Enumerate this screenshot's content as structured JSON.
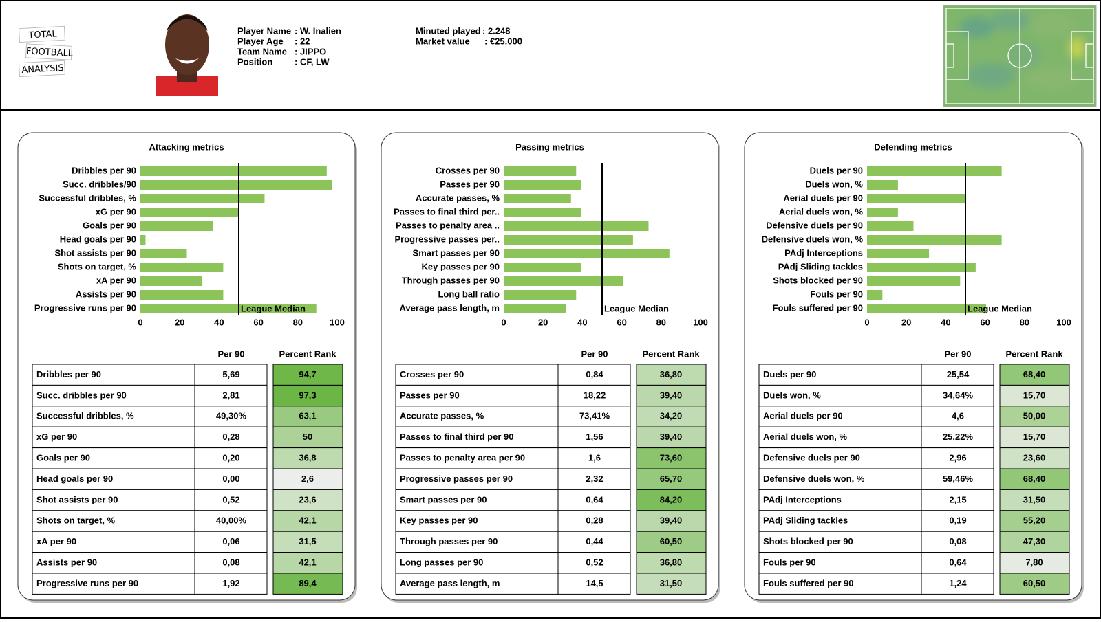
{
  "header": {
    "logo": [
      "TOTAL",
      "FOOTBALL",
      "ANALYSIS"
    ],
    "info_left": [
      {
        "label": "Player Name",
        "value": ": W. Inalien"
      },
      {
        "label": "Player Age",
        "value": ": 22"
      },
      {
        "label": "Team Name",
        "value": ": JIPPO"
      },
      {
        "label": "Position",
        "value": ": CF, LW"
      }
    ],
    "info_right": [
      {
        "label": "Minuted played",
        "value": ": 2.248"
      },
      {
        "label": "Market value",
        "value": ": €25.000"
      }
    ]
  },
  "chart_data": [
    {
      "type": "bar",
      "orientation": "horizontal",
      "title": "Attacking metrics",
      "color": "#8cc45a",
      "categories": [
        "Dribbles per 90",
        "Succ. dribbles/90",
        "Successful dribbles, %",
        "xG per 90",
        "Goals per 90",
        "Head goals per 90",
        "Shot assists per 90",
        "Shots on target, %",
        "xA per 90",
        "Assists per 90",
        "Progressive runs per 90"
      ],
      "values": [
        94.7,
        97.3,
        63.1,
        50,
        36.8,
        2.6,
        23.6,
        42.1,
        31.5,
        42.1,
        89.4
      ],
      "xlim": [
        0,
        100
      ],
      "xticks": [
        0,
        20,
        40,
        60,
        80,
        100
      ],
      "median": {
        "value": 50,
        "label": "League Median"
      }
    },
    {
      "type": "bar",
      "orientation": "horizontal",
      "title": "Passing metrics",
      "color": "#8cc45a",
      "categories": [
        "Crosses per 90",
        "Passes per 90",
        "Accurate passes, %",
        "Passes to final third per..",
        "Passes to penalty area ..",
        "Progressive passes per..",
        "Smart passes per 90",
        "Key passes per 90",
        "Through passes per 90",
        "Long ball ratio",
        "Average pass length, m"
      ],
      "values": [
        36.8,
        39.4,
        34.2,
        39.4,
        73.6,
        65.7,
        84.2,
        39.4,
        60.5,
        36.8,
        31.5
      ],
      "xlim": [
        0,
        100
      ],
      "xticks": [
        0,
        20,
        40,
        60,
        80,
        100
      ],
      "median": {
        "value": 50,
        "label": "League Median"
      }
    },
    {
      "type": "bar",
      "orientation": "horizontal",
      "title": "Defending metrics",
      "color": "#8cc45a",
      "categories": [
        "Duels per 90",
        "Duels won, %",
        "Aerial duels per 90",
        "Aerial duels won, %",
        "Defensive duels per 90",
        "Defensive duels won, %",
        "PAdj Interceptions",
        "PAdj Sliding tackles",
        "Shots blocked per 90",
        "Fouls per 90",
        "Fouls suffered per 90"
      ],
      "values": [
        68.4,
        15.7,
        50,
        15.7,
        23.6,
        68.4,
        31.5,
        55.2,
        47.3,
        7.8,
        60.5
      ],
      "xlim": [
        0,
        100
      ],
      "xticks": [
        0,
        20,
        40,
        60,
        80,
        100
      ],
      "median": {
        "value": 50,
        "label": "League Median"
      }
    }
  ],
  "tables": [
    {
      "columns": [
        "Per 90",
        "Percent Rank"
      ],
      "rows": [
        [
          "Dribbles per 90",
          "5,69",
          "94,7"
        ],
        [
          "Succ. dribbles per 90",
          "2,81",
          "97,3"
        ],
        [
          "Successful dribbles, %",
          "49,30%",
          "63,1"
        ],
        [
          "xG per 90",
          "0,28",
          "50"
        ],
        [
          "Goals per 90",
          "0,20",
          "36,8"
        ],
        [
          "Head goals per 90",
          "0,00",
          "2,6"
        ],
        [
          "Shot assists per 90",
          "0,52",
          "23,6"
        ],
        [
          "Shots on target, %",
          "40,00%",
          "42,1"
        ],
        [
          "xA per 90",
          "0,06",
          "31,5"
        ],
        [
          "Assists per 90",
          "0,08",
          "42,1"
        ],
        [
          "Progressive runs per 90",
          "1,92",
          "89,4"
        ]
      ]
    },
    {
      "columns": [
        "Per 90",
        "Percent Rank"
      ],
      "rows": [
        [
          "Crosses per 90",
          "0,84",
          "36,80"
        ],
        [
          "Passes per 90",
          "18,22",
          "39,40"
        ],
        [
          "Accurate passes, %",
          "73,41%",
          "34,20"
        ],
        [
          "Passes to final third per 90",
          "1,56",
          "39,40"
        ],
        [
          "Passes to penalty area per 90",
          "1,6",
          "73,60"
        ],
        [
          "Progressive passes per 90",
          "2,32",
          "65,70"
        ],
        [
          "Smart passes per 90",
          "0,64",
          "84,20"
        ],
        [
          "Key passes per 90",
          "0,28",
          "39,40"
        ],
        [
          "Through passes per 90",
          "0,44",
          "60,50"
        ],
        [
          "Long passes per 90",
          "0,52",
          "36,80"
        ],
        [
          "Average pass length, m",
          "14,5",
          "31,50"
        ]
      ]
    },
    {
      "columns": [
        "Per 90",
        "Percent Rank"
      ],
      "rows": [
        [
          "Duels per 90",
          "25,54",
          "68,40"
        ],
        [
          "Duels won, %",
          "34,64%",
          "15,70"
        ],
        [
          "Aerial duels per 90",
          "4,6",
          "50,00"
        ],
        [
          "Aerial duels won, %",
          "25,22%",
          "15,70"
        ],
        [
          "Defensive duels per 90",
          "2,96",
          "23,60"
        ],
        [
          "Defensive duels won, %",
          "59,46%",
          "68,40"
        ],
        [
          "PAdj Interceptions",
          "2,15",
          "31,50"
        ],
        [
          "PAdj Sliding tackles",
          "0,19",
          "55,20"
        ],
        [
          "Shots blocked per 90",
          "0,08",
          "47,30"
        ],
        [
          "Fouls per 90",
          "0,64",
          "7,80"
        ],
        [
          "Fouls suffered per 90",
          "1,24",
          "60,50"
        ]
      ]
    }
  ]
}
